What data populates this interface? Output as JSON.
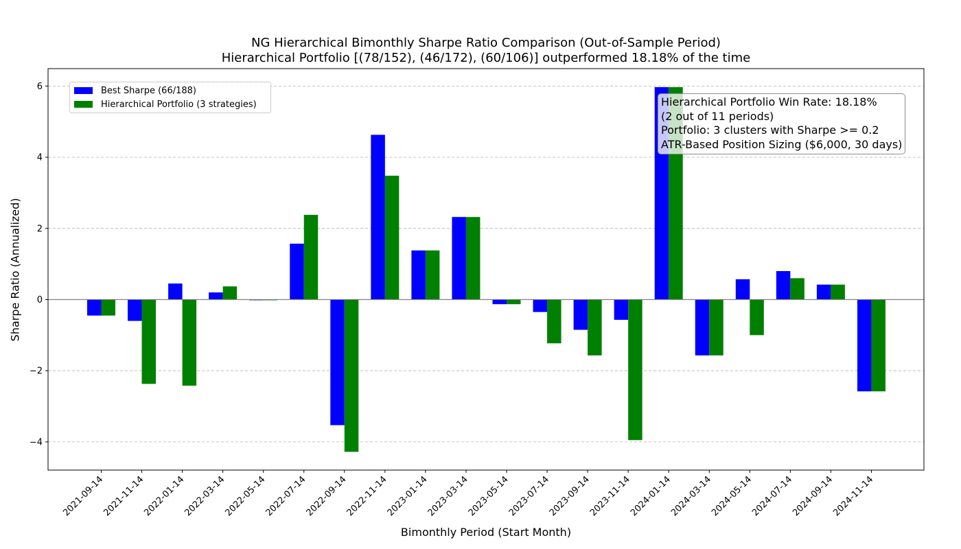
{
  "chart_data": {
    "type": "bar",
    "title": "NG Hierarchical Bimonthly Sharpe Ratio Comparison (Out-of-Sample Period)",
    "subtitle": "Hierarchical Portfolio [(78/152), (46/172), (60/106)] outperformed 18.18% of the time",
    "xlabel": "Bimonthly Period (Start Month)",
    "ylabel": "Sharpe Ratio (Annualized)",
    "ylim": [
      -4.8,
      6.5
    ],
    "yticks": [
      -4,
      -2,
      0,
      2,
      4,
      6
    ],
    "ytick_labels": [
      "−4",
      "−2",
      "0",
      "2",
      "4",
      "6"
    ],
    "grid": "horizontal dashed",
    "legend_position": "top-left",
    "categories": [
      "2021-09-14",
      "2021-11-14",
      "2022-01-14",
      "2022-03-14",
      "2022-05-14",
      "2022-07-14",
      "2022-09-14",
      "2022-11-14",
      "2023-01-14",
      "2023-03-14",
      "2023-05-14",
      "2023-07-14",
      "2023-09-14",
      "2023-11-14",
      "2024-01-14",
      "2024-03-14",
      "2024-05-14",
      "2024-07-14",
      "2024-09-14",
      "2024-11-14"
    ],
    "series": [
      {
        "name": "Best Sharpe (66/188)",
        "color": "#0000ff",
        "values": [
          -0.45,
          -0.6,
          0.45,
          0.2,
          -0.02,
          1.57,
          -3.53,
          4.63,
          1.38,
          2.32,
          -0.13,
          -0.35,
          -0.85,
          -0.57,
          5.97,
          -1.57,
          0.57,
          0.8,
          0.42,
          -2.58
        ]
      },
      {
        "name": "Hierarchical Portfolio (3 strategies)",
        "color": "#008000",
        "values": [
          -0.45,
          -2.37,
          -2.42,
          0.37,
          -0.02,
          2.38,
          -4.28,
          3.48,
          1.38,
          2.32,
          -0.13,
          -1.23,
          -1.57,
          -3.95,
          5.97,
          -1.57,
          -1.0,
          0.6,
          0.42,
          -2.58
        ]
      }
    ],
    "annotation_lines": [
      "Hierarchical Portfolio Win Rate: 18.18%",
      "(2 out of 11 periods)",
      "Portfolio: 3 clusters with Sharpe >= 0.2",
      "ATR-Based Position Sizing ($6,000, 30 days)"
    ]
  }
}
